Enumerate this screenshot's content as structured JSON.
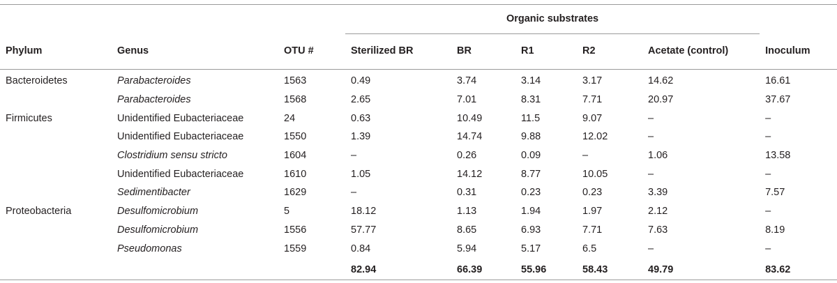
{
  "table": {
    "group_header": "Organic substrates",
    "columns": [
      "Phylum",
      "Genus",
      "OTU #",
      "Sterilized BR",
      "BR",
      "R1",
      "R2",
      "Acetate (control)",
      "Inoculum"
    ],
    "rows": [
      {
        "phylum": "Bacteroidetes",
        "genus": "Parabacteroides",
        "italic": true,
        "otu": "1563",
        "sterilized_br": "0.49",
        "br": "3.74",
        "r1": "3.14",
        "r2": "3.17",
        "acetate": "14.62",
        "inoculum": "16.61"
      },
      {
        "phylum": "",
        "genus": "Parabacteroides",
        "italic": true,
        "otu": "1568",
        "sterilized_br": "2.65",
        "br": "7.01",
        "r1": "8.31",
        "r2": "7.71",
        "acetate": "20.97",
        "inoculum": "37.67"
      },
      {
        "phylum": "Firmicutes",
        "genus": "Unidentified Eubacteriaceae",
        "italic": false,
        "otu": "24",
        "sterilized_br": "0.63",
        "br": "10.49",
        "r1": "11.5",
        "r2": "9.07",
        "acetate": "–",
        "inoculum": "–"
      },
      {
        "phylum": "",
        "genus": "Unidentified Eubacteriaceae",
        "italic": false,
        "otu": "1550",
        "sterilized_br": "1.39",
        "br": "14.74",
        "r1": "9.88",
        "r2": "12.02",
        "acetate": "–",
        "inoculum": "–"
      },
      {
        "phylum": "",
        "genus": "Clostridium sensu stricto",
        "italic": true,
        "otu": "1604",
        "sterilized_br": "–",
        "br": "0.26",
        "r1": "0.09",
        "r2": "–",
        "acetate": "1.06",
        "inoculum": "13.58"
      },
      {
        "phylum": "",
        "genus": "Unidentified Eubacteriaceae",
        "italic": false,
        "otu": "1610",
        "sterilized_br": "1.05",
        "br": "14.12",
        "r1": "8.77",
        "r2": "10.05",
        "acetate": "–",
        "inoculum": "–"
      },
      {
        "phylum": "",
        "genus": "Sedimentibacter",
        "italic": true,
        "otu": "1629",
        "sterilized_br": "–",
        "br": "0.31",
        "r1": "0.23",
        "r2": "0.23",
        "acetate": "3.39",
        "inoculum": "7.57"
      },
      {
        "phylum": "Proteobacteria",
        "genus": "Desulfomicrobium",
        "italic": true,
        "otu": "5",
        "sterilized_br": "18.12",
        "br": "1.13",
        "r1": "1.94",
        "r2": "1.97",
        "acetate": "2.12",
        "inoculum": "–"
      },
      {
        "phylum": "",
        "genus": "Desulfomicrobium",
        "italic": true,
        "otu": "1556",
        "sterilized_br": "57.77",
        "br": "8.65",
        "r1": "6.93",
        "r2": "7.71",
        "acetate": "7.63",
        "inoculum": "8.19"
      },
      {
        "phylum": "",
        "genus": "Pseudomonas",
        "italic": true,
        "otu": "1559",
        "sterilized_br": "0.84",
        "br": "5.94",
        "r1": "5.17",
        "r2": "6.5",
        "acetate": "–",
        "inoculum": "–"
      }
    ],
    "totals": {
      "sterilized_br": "82.94",
      "br": "66.39",
      "r1": "55.96",
      "r2": "58.43",
      "acetate": "49.79",
      "inoculum": "83.62"
    }
  }
}
